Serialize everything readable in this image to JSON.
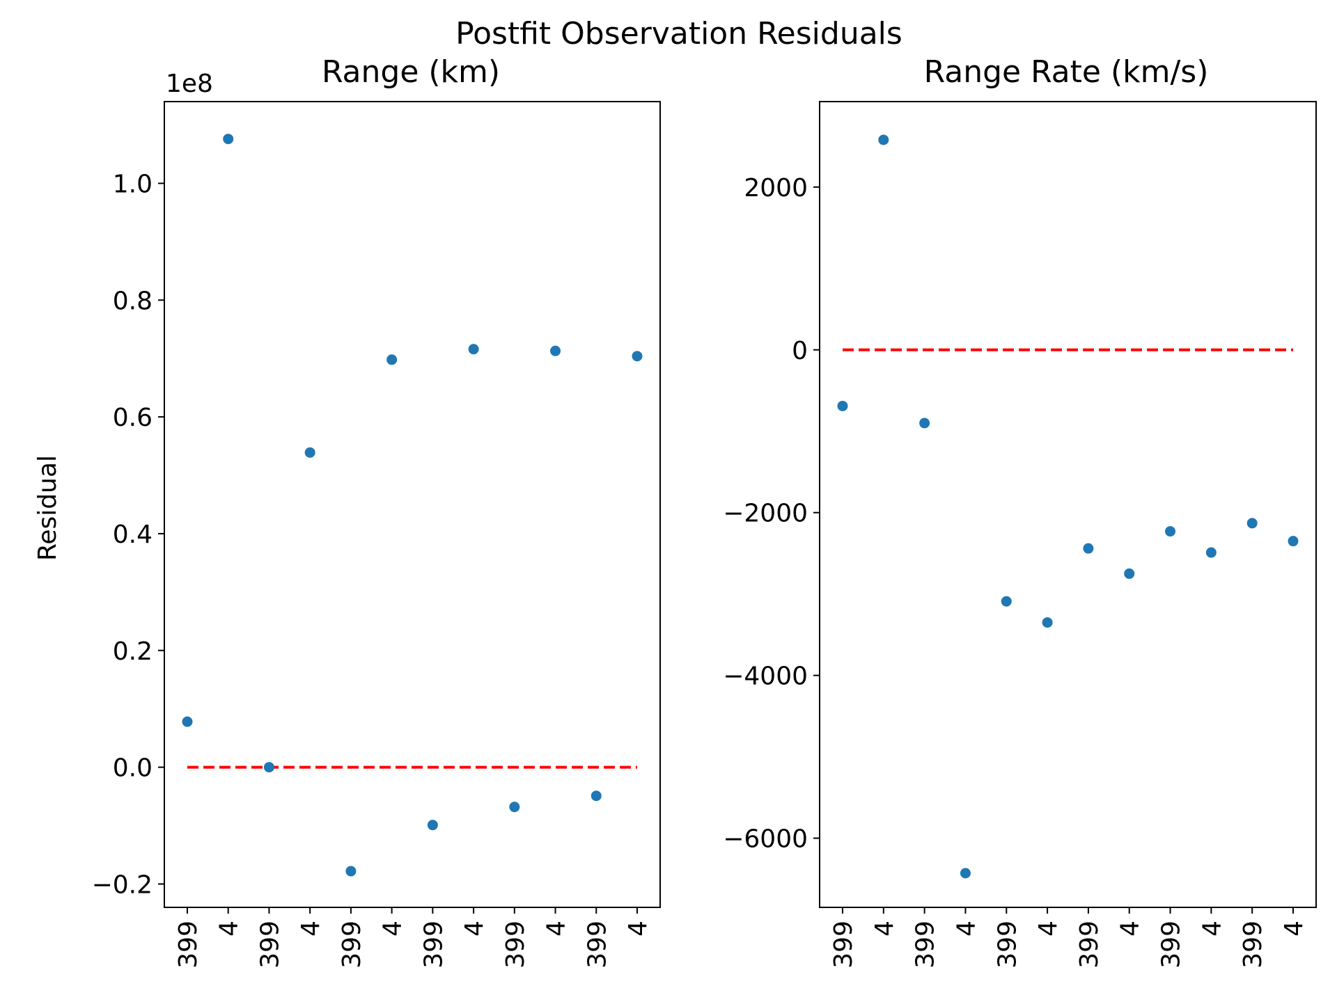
{
  "figure": {
    "suptitle": "Postfit Observation Residuals",
    "ylabel": "Residual",
    "zero_line_color": "#ff0000",
    "point_color": "#1f77b4"
  },
  "chart_data": [
    {
      "type": "scatter",
      "title": "Range (km)",
      "ylabel": "Residual",
      "offset_text": "1e8",
      "scale": 100000000,
      "categories": [
        "399",
        "4",
        "399",
        "4",
        "399",
        "4",
        "399",
        "4",
        "399",
        "4",
        "399",
        "4"
      ],
      "values": [
        7800000,
        107600000,
        0,
        53900000,
        -17800000,
        69800000,
        -9900000,
        71600000,
        -6800000,
        71300000,
        -4900000,
        70400000
      ],
      "ylim": [
        -24000000,
        114000000
      ],
      "yticks": [
        -20000000,
        0,
        20000000,
        40000000,
        60000000,
        80000000,
        100000000
      ],
      "ytick_labels": [
        "−0.2",
        "0.0",
        "0.2",
        "0.4",
        "0.6",
        "0.8",
        "1.0"
      ],
      "zero_line": 0,
      "grid": false
    },
    {
      "type": "scatter",
      "title": "Range Rate (km/s)",
      "ylabel": "",
      "categories": [
        "399",
        "4",
        "399",
        "4",
        "399",
        "4",
        "399",
        "4",
        "399",
        "4",
        "399",
        "4"
      ],
      "values": [
        -690,
        2580,
        -900,
        -6430,
        -3090,
        -3350,
        -2440,
        -2750,
        -2230,
        -2490,
        -2130,
        -2350
      ],
      "ylim": [
        -6850,
        3050
      ],
      "yticks": [
        -6000,
        -4000,
        -2000,
        0,
        2000
      ],
      "ytick_labels": [
        "−6000",
        "−4000",
        "−2000",
        "0",
        "2000"
      ],
      "zero_line": 0,
      "grid": false
    }
  ]
}
